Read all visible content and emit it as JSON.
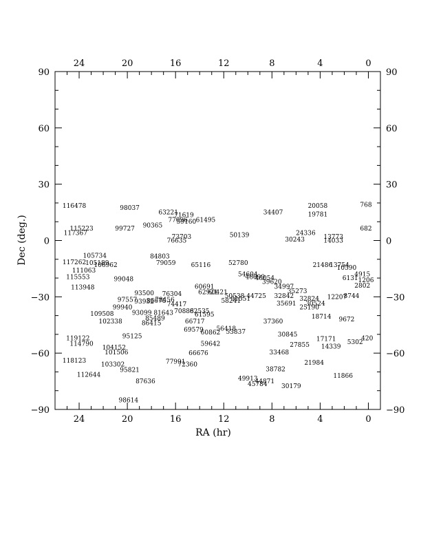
{
  "chart_data": {
    "type": "scatter",
    "title": "",
    "xlabel": "RA (hr)",
    "ylabel": "Dec (deg.)",
    "xlim": [
      26,
      -1
    ],
    "ylim": [
      -90,
      90
    ],
    "x_reversed": true,
    "x_ticks": [
      24,
      20,
      16,
      12,
      8,
      4,
      0
    ],
    "y_ticks": [
      -90,
      -60,
      -30,
      0,
      30,
      60,
      90
    ],
    "x_ticks_top": [
      24,
      20,
      16,
      12,
      8,
      4,
      0
    ],
    "y_ticks_right": [
      -90,
      -60,
      -30,
      0,
      30,
      60,
      90
    ],
    "grid": false,
    "marker": "text-label",
    "points": [
      {
        "label": "116478",
        "ra": 24.4,
        "dec": 18.5
      },
      {
        "label": "98037",
        "ra": 19.8,
        "dec": 17.5
      },
      {
        "label": "63221",
        "ra": 16.6,
        "dec": 15.0
      },
      {
        "label": "71619",
        "ra": 15.3,
        "dec": 13.5
      },
      {
        "label": "77096",
        "ra": 15.8,
        "dec": 11.0
      },
      {
        "label": "59160",
        "ra": 15.1,
        "dec": 10.0
      },
      {
        "label": "61495",
        "ra": 13.5,
        "dec": 11.0
      },
      {
        "label": "34407",
        "ra": 7.9,
        "dec": 15.0
      },
      {
        "label": "20058",
        "ra": 4.2,
        "dec": 18.5
      },
      {
        "label": "19781",
        "ra": 4.2,
        "dec": 14.0
      },
      {
        "label": "768",
        "ra": 0.2,
        "dec": 19.0
      },
      {
        "label": "115223",
        "ra": 23.8,
        "dec": 6.5
      },
      {
        "label": "117367",
        "ra": 24.3,
        "dec": 4.0
      },
      {
        "label": "99727",
        "ra": 20.2,
        "dec": 6.5
      },
      {
        "label": "90365",
        "ra": 17.9,
        "dec": 8.0
      },
      {
        "label": "73703",
        "ra": 15.5,
        "dec": 2.0
      },
      {
        "label": "76635",
        "ra": 15.9,
        "dec": 0.0
      },
      {
        "label": "50139",
        "ra": 10.7,
        "dec": 3.0
      },
      {
        "label": "24336",
        "ra": 5.2,
        "dec": 4.0
      },
      {
        "label": "30243",
        "ra": 6.1,
        "dec": 0.5
      },
      {
        "label": "13773",
        "ra": 2.9,
        "dec": 2.0
      },
      {
        "label": "14033",
        "ra": 2.9,
        "dec": 0.0
      },
      {
        "label": "682",
        "ra": 0.2,
        "dec": 6.5
      },
      {
        "label": "105734",
        "ra": 22.7,
        "dec": -8.0
      },
      {
        "label": "117262",
        "ra": 24.4,
        "dec": -11.5
      },
      {
        "label": "105189",
        "ra": 22.5,
        "dec": -12.0
      },
      {
        "label": "106962",
        "ra": 21.8,
        "dec": -13.0
      },
      {
        "label": "111063",
        "ra": 23.6,
        "dec": -16.0
      },
      {
        "label": "115553",
        "ra": 24.1,
        "dec": -19.5
      },
      {
        "label": "99048",
        "ra": 20.3,
        "dec": -20.5
      },
      {
        "label": "113948",
        "ra": 23.7,
        "dec": -25.0
      },
      {
        "label": "84803",
        "ra": 17.3,
        "dec": -8.5
      },
      {
        "label": "79059",
        "ra": 16.8,
        "dec": -12.0
      },
      {
        "label": "65116",
        "ra": 13.9,
        "dec": -13.0
      },
      {
        "label": "52780",
        "ra": 10.8,
        "dec": -12.0
      },
      {
        "label": "54604",
        "ra": 10.0,
        "dec": -18.0
      },
      {
        "label": "46699",
        "ra": 9.4,
        "dec": -19.5
      },
      {
        "label": "46054",
        "ra": 8.6,
        "dec": -20.0
      },
      {
        "label": "39620",
        "ra": 8.0,
        "dec": -22.0
      },
      {
        "label": "34997",
        "ra": 7.0,
        "dec": -24.5
      },
      {
        "label": "21486",
        "ra": 3.8,
        "dec": -13.0
      },
      {
        "label": "13754",
        "ra": 2.4,
        "dec": -13.0
      },
      {
        "label": "10590",
        "ra": 1.8,
        "dec": -14.5
      },
      {
        "label": "4915",
        "ra": 0.5,
        "dec": -18.0
      },
      {
        "label": "6131",
        "ra": 1.5,
        "dec": -20.0
      },
      {
        "label": "1206",
        "ra": 0.2,
        "dec": -21.0
      },
      {
        "label": "2802",
        "ra": 0.5,
        "dec": -24.0
      },
      {
        "label": "93500",
        "ra": 18.6,
        "dec": -28.0
      },
      {
        "label": "76304",
        "ra": 16.3,
        "dec": -28.5
      },
      {
        "label": "60691",
        "ra": 13.6,
        "dec": -24.5
      },
      {
        "label": "62921",
        "ra": 13.3,
        "dec": -27.5
      },
      {
        "label": "60421",
        "ra": 12.5,
        "dec": -27.5
      },
      {
        "label": "50538",
        "ra": 11.1,
        "dec": -29.5
      },
      {
        "label": "51551",
        "ra": 10.6,
        "dec": -31.0
      },
      {
        "label": "44725",
        "ra": 9.3,
        "dec": -29.5
      },
      {
        "label": "35273",
        "ra": 5.9,
        "dec": -27.0
      },
      {
        "label": "32842",
        "ra": 7.0,
        "dec": -29.5
      },
      {
        "label": "32824",
        "ra": 4.9,
        "dec": -31.0
      },
      {
        "label": "12207",
        "ra": 2.6,
        "dec": -30.0
      },
      {
        "label": "8744",
        "ra": 1.4,
        "dec": -29.5
      },
      {
        "label": "97557",
        "ra": 20.0,
        "dec": -31.5
      },
      {
        "label": "93932",
        "ra": 18.6,
        "dec": -32.5
      },
      {
        "label": "86678",
        "ra": 17.6,
        "dec": -32.0
      },
      {
        "label": "78456",
        "ra": 16.9,
        "dec": -31.5
      },
      {
        "label": "74417",
        "ra": 15.9,
        "dec": -34.0
      },
      {
        "label": "58241",
        "ra": 11.4,
        "dec": -32.0
      },
      {
        "label": "35691",
        "ra": 6.8,
        "dec": -33.5
      },
      {
        "label": "30524",
        "ra": 4.4,
        "dec": -33.5
      },
      {
        "label": "25190",
        "ra": 4.9,
        "dec": -35.5
      },
      {
        "label": "99940",
        "ra": 20.4,
        "dec": -35.5
      },
      {
        "label": "109508",
        "ra": 22.1,
        "dec": -39.0
      },
      {
        "label": "93099",
        "ra": 18.8,
        "dec": -38.5
      },
      {
        "label": "81643",
        "ra": 17.0,
        "dec": -38.5
      },
      {
        "label": "70888",
        "ra": 15.3,
        "dec": -37.5
      },
      {
        "label": "62535",
        "ra": 14.0,
        "dec": -37.5
      },
      {
        "label": "61595",
        "ra": 13.6,
        "dec": -39.5
      },
      {
        "label": "18714",
        "ra": 3.9,
        "dec": -40.5
      },
      {
        "label": "9672",
        "ra": 1.8,
        "dec": -42.0
      },
      {
        "label": "102338",
        "ra": 21.4,
        "dec": -43.0
      },
      {
        "label": "85489",
        "ra": 17.7,
        "dec": -41.5
      },
      {
        "label": "86415",
        "ra": 18.0,
        "dec": -44.0
      },
      {
        "label": "66717",
        "ra": 14.4,
        "dec": -43.0
      },
      {
        "label": "37360",
        "ra": 7.9,
        "dec": -43.0
      },
      {
        "label": "69579",
        "ra": 14.5,
        "dec": -47.5
      },
      {
        "label": "60862",
        "ra": 13.1,
        "dec": -49.0
      },
      {
        "label": "56418",
        "ra": 11.8,
        "dec": -47.0
      },
      {
        "label": "53837",
        "ra": 11.0,
        "dec": -48.5
      },
      {
        "label": "30845",
        "ra": 6.7,
        "dec": -50.0
      },
      {
        "label": "95125",
        "ra": 19.6,
        "dec": -51.0
      },
      {
        "label": "119122",
        "ra": 24.1,
        "dec": -52.0
      },
      {
        "label": "114790",
        "ra": 23.8,
        "dec": -55.0
      },
      {
        "label": "104152",
        "ra": 21.1,
        "dec": -57.0
      },
      {
        "label": "101506",
        "ra": 20.9,
        "dec": -59.5
      },
      {
        "label": "59642",
        "ra": 13.1,
        "dec": -55.0
      },
      {
        "label": "66676",
        "ra": 14.1,
        "dec": -60.0
      },
      {
        "label": "33468",
        "ra": 7.4,
        "dec": -59.5
      },
      {
        "label": "27855",
        "ra": 5.7,
        "dec": -55.5
      },
      {
        "label": "17171",
        "ra": 3.5,
        "dec": -52.5
      },
      {
        "label": "14339",
        "ra": 3.1,
        "dec": -56.5
      },
      {
        "label": "5302",
        "ra": 1.1,
        "dec": -54.0
      },
      {
        "label": "420",
        "ra": 0.1,
        "dec": -52.0
      },
      {
        "label": "118123",
        "ra": 24.4,
        "dec": -64.0
      },
      {
        "label": "103302",
        "ra": 21.2,
        "dec": -66.0
      },
      {
        "label": "95821",
        "ra": 19.8,
        "dec": -69.0
      },
      {
        "label": "112644",
        "ra": 23.2,
        "dec": -71.5
      },
      {
        "label": "77991",
        "ra": 16.0,
        "dec": -64.5
      },
      {
        "label": "72360",
        "ra": 15.0,
        "dec": -66.0
      },
      {
        "label": "21984",
        "ra": 4.5,
        "dec": -65.0
      },
      {
        "label": "38782",
        "ra": 7.7,
        "dec": -68.5
      },
      {
        "label": "11866",
        "ra": 2.1,
        "dec": -72.0
      },
      {
        "label": "87636",
        "ra": 18.5,
        "dec": -75.0
      },
      {
        "label": "49913",
        "ra": 10.0,
        "dec": -73.5
      },
      {
        "label": "44871",
        "ra": 8.6,
        "dec": -75.0
      },
      {
        "label": "45784",
        "ra": 9.2,
        "dec": -76.5
      },
      {
        "label": "30179",
        "ra": 6.4,
        "dec": -77.5
      },
      {
        "label": "98614",
        "ra": 19.9,
        "dec": -85.0
      }
    ]
  }
}
